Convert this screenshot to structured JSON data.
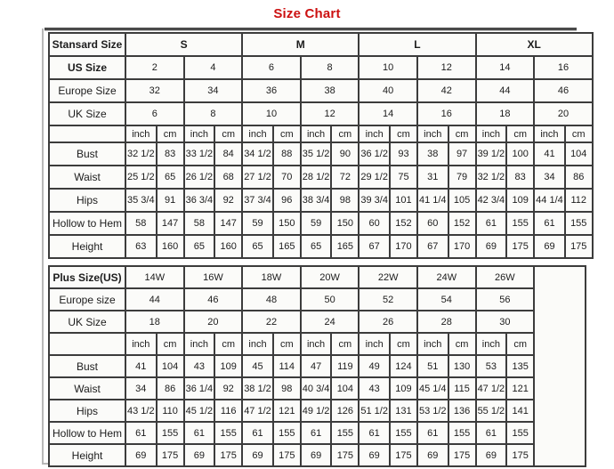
{
  "title": "Size Chart",
  "colors": {
    "title_red": "#cc1111",
    "border_dark": "#3c3c3c",
    "cell_bg": "#fbfbf9"
  },
  "units_labels": {
    "inch": "inch",
    "cm": "cm"
  },
  "standard_table": {
    "label_col_width": 86,
    "data_col_width": 31,
    "trailing_empty": false,
    "rows": [
      {
        "label": "Stansard Size",
        "label_bold": true,
        "cells_bold": true,
        "span": 4,
        "cells": [
          "S",
          "M",
          "L",
          "XL"
        ]
      },
      {
        "label": "US Size",
        "label_bold": true,
        "span": 2,
        "cells": [
          "2",
          "4",
          "6",
          "8",
          "10",
          "12",
          "14",
          "16"
        ]
      },
      {
        "label": "Europe Size",
        "span": 2,
        "cells": [
          "32",
          "34",
          "36",
          "38",
          "40",
          "42",
          "44",
          "46"
        ]
      },
      {
        "label": "UK Size",
        "span": 2,
        "cells": [
          "6",
          "8",
          "10",
          "12",
          "14",
          "16",
          "18",
          "20"
        ]
      },
      {
        "label": "",
        "units": true,
        "span": 1,
        "cells": [
          "inch",
          "cm",
          "inch",
          "cm",
          "inch",
          "cm",
          "inch",
          "cm",
          "inch",
          "cm",
          "inch",
          "cm",
          "inch",
          "cm",
          "inch",
          "cm"
        ]
      },
      {
        "label": "Bust",
        "span": 1,
        "cells": [
          "32 1/2",
          "83",
          "33 1/2",
          "84",
          "34 1/2",
          "88",
          "35 1/2",
          "90",
          "36 1/2",
          "93",
          "38",
          "97",
          "39 1/2",
          "100",
          "41",
          "104"
        ]
      },
      {
        "label": "Waist",
        "span": 1,
        "cells": [
          "25 1/2",
          "65",
          "26 1/2",
          "68",
          "27 1/2",
          "70",
          "28 1/2",
          "72",
          "29 1/2",
          "75",
          "31",
          "79",
          "32 1/2",
          "83",
          "34",
          "86"
        ]
      },
      {
        "label": "Hips",
        "span": 1,
        "cells": [
          "35 3/4",
          "91",
          "36 3/4",
          "92",
          "37 3/4",
          "96",
          "38 3/4",
          "98",
          "39 3/4",
          "101",
          "41 1/4",
          "105",
          "42 3/4",
          "109",
          "44 1/4",
          "112"
        ]
      },
      {
        "label": "Hollow to Hem",
        "span": 1,
        "cells": [
          "58",
          "147",
          "58",
          "147",
          "59",
          "150",
          "59",
          "150",
          "60",
          "152",
          "60",
          "152",
          "61",
          "155",
          "61",
          "155"
        ]
      },
      {
        "label": "Height",
        "span": 1,
        "cells": [
          "63",
          "160",
          "65",
          "160",
          "65",
          "165",
          "65",
          "165",
          "67",
          "170",
          "67",
          "170",
          "69",
          "175",
          "69",
          "175"
        ]
      }
    ]
  },
  "plus_table": {
    "label_col_width": 86,
    "data_col_width": 31,
    "trailing_empty": true,
    "trailing_empty_width": 58,
    "rows": [
      {
        "label": "Plus Size(US)",
        "label_bold": true,
        "span": 2,
        "cells": [
          "14W",
          "16W",
          "18W",
          "20W",
          "22W",
          "24W",
          "26W"
        ]
      },
      {
        "label": "Europe size",
        "span": 2,
        "cells": [
          "44",
          "46",
          "48",
          "50",
          "52",
          "54",
          "56"
        ]
      },
      {
        "label": "UK Size",
        "span": 2,
        "cells": [
          "18",
          "20",
          "22",
          "24",
          "26",
          "28",
          "30"
        ]
      },
      {
        "label": "",
        "units": true,
        "span": 1,
        "cells": [
          "inch",
          "cm",
          "inch",
          "cm",
          "inch",
          "cm",
          "inch",
          "cm",
          "inch",
          "cm",
          "inch",
          "cm",
          "inch",
          "cm"
        ]
      },
      {
        "label": "Bust",
        "span": 1,
        "cells": [
          "41",
          "104",
          "43",
          "109",
          "45",
          "114",
          "47",
          "119",
          "49",
          "124",
          "51",
          "130",
          "53",
          "135"
        ]
      },
      {
        "label": "Waist",
        "span": 1,
        "cells": [
          "34",
          "86",
          "36 1/4",
          "92",
          "38 1/2",
          "98",
          "40 3/4",
          "104",
          "43",
          "109",
          "45 1/4",
          "115",
          "47 1/2",
          "121"
        ]
      },
      {
        "label": "Hips",
        "span": 1,
        "cells": [
          "43 1/2",
          "110",
          "45 1/2",
          "116",
          "47 1/2",
          "121",
          "49 1/2",
          "126",
          "51 1/2",
          "131",
          "53 1/2",
          "136",
          "55 1/2",
          "141"
        ]
      },
      {
        "label": "Hollow to Hem",
        "span": 1,
        "cells": [
          "61",
          "155",
          "61",
          "155",
          "61",
          "155",
          "61",
          "155",
          "61",
          "155",
          "61",
          "155",
          "61",
          "155"
        ]
      },
      {
        "label": "Height",
        "span": 1,
        "cells": [
          "69",
          "175",
          "69",
          "175",
          "69",
          "175",
          "69",
          "175",
          "69",
          "175",
          "69",
          "175",
          "69",
          "175"
        ]
      }
    ]
  }
}
